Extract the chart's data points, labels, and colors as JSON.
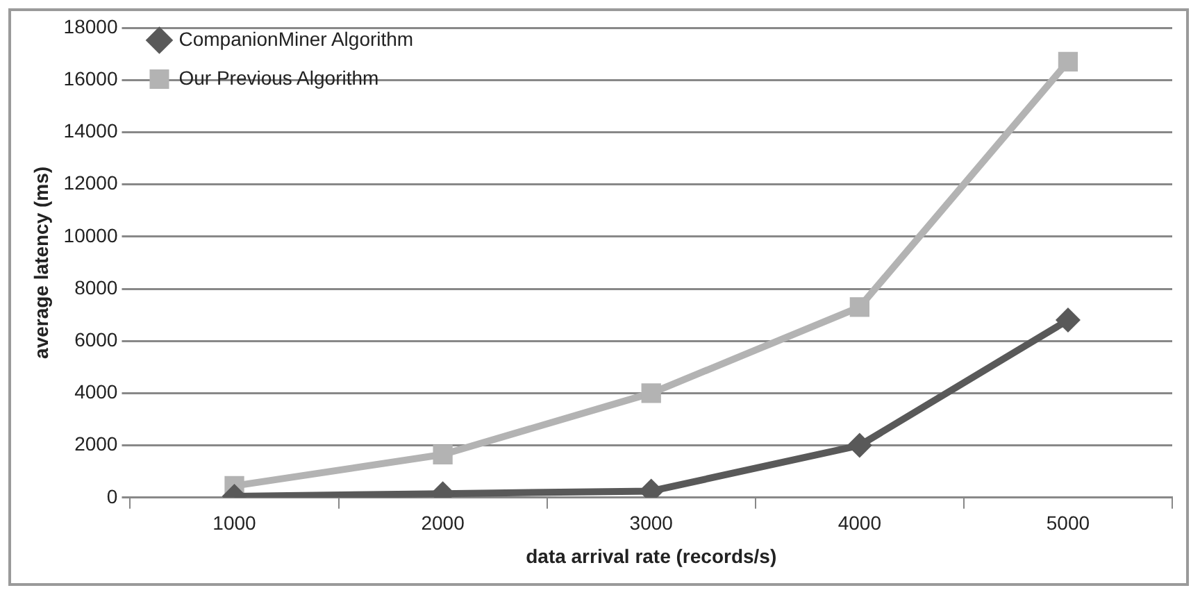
{
  "chart_data": {
    "type": "line",
    "xlabel": "data arrival rate (records/s)",
    "ylabel": "average latency (ms)",
    "categories": [
      "1000",
      "2000",
      "3000",
      "4000",
      "5000"
    ],
    "series": [
      {
        "name": "CompanionMiner Algorithm",
        "color": "#595959",
        "marker": "diamond",
        "values": [
          50,
          150,
          250,
          2000,
          6800
        ]
      },
      {
        "name": "Our Previous Algorithm",
        "color": "#b3b3b3",
        "marker": "square",
        "values": [
          450,
          1650,
          4000,
          7300,
          16700
        ]
      }
    ],
    "ylim": [
      0,
      18000
    ],
    "yticks": [
      0,
      2000,
      4000,
      6000,
      8000,
      10000,
      12000,
      14000,
      16000,
      18000
    ],
    "grid": "y",
    "legend": "top left"
  }
}
